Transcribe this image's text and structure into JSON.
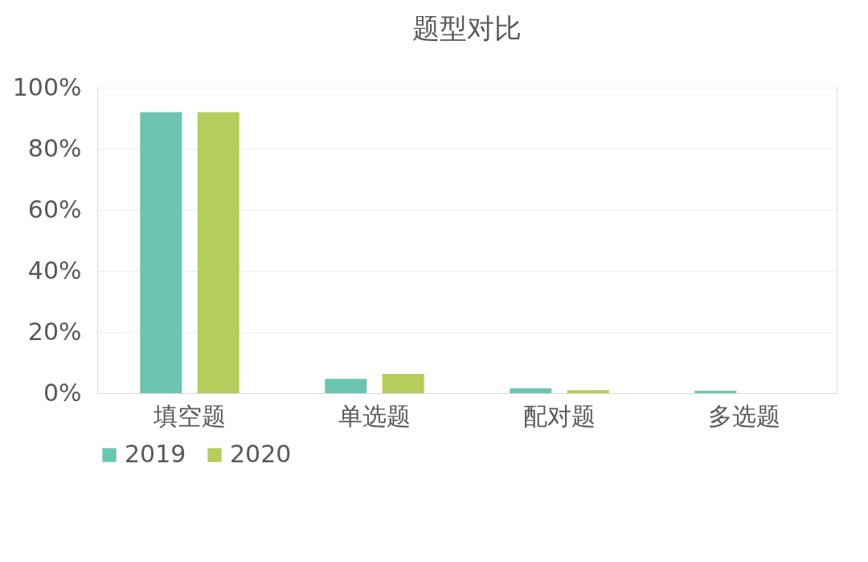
{
  "chart_data": {
    "type": "bar",
    "title": "题型对比",
    "categories": [
      "填空题",
      "单选题",
      "配对题",
      "多选题"
    ],
    "series": [
      {
        "name": "2019",
        "color": "#6cc5b0",
        "values": [
          92,
          4.7,
          1.6,
          0.8
        ]
      },
      {
        "name": "2020",
        "color": "#b5cd5a",
        "values": [
          92,
          6.3,
          1.0,
          0
        ]
      }
    ],
    "ylim": [
      0,
      100
    ],
    "yticks": [
      {
        "value": 0,
        "label": "0%"
      },
      {
        "value": 20,
        "label": "20%"
      },
      {
        "value": 40,
        "label": "40%"
      },
      {
        "value": 60,
        "label": "60%"
      },
      {
        "value": 80,
        "label": "80%"
      },
      {
        "value": 100,
        "label": "100%"
      }
    ],
    "grid": "y",
    "legend": "bottom"
  }
}
